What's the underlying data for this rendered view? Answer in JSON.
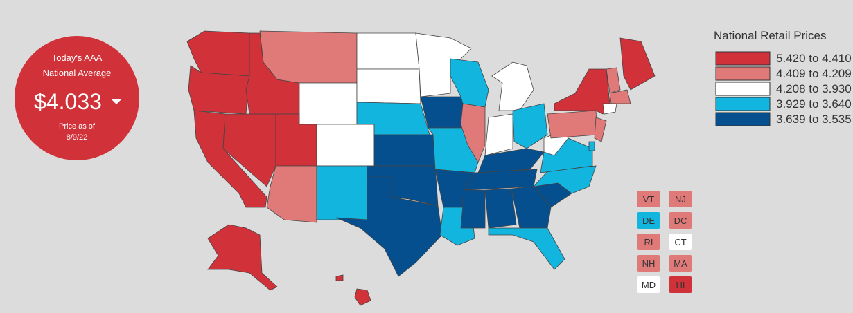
{
  "badge": {
    "line1": "Today's AAA",
    "line2": "National Average",
    "price": "$4.033",
    "date_label": "Price as of",
    "date": "8/9/22"
  },
  "legend": {
    "title": "National Retail Prices",
    "entries": [
      {
        "label": "5.420 to 4.410",
        "color": "#d13239"
      },
      {
        "label": "4.409 to 4.209",
        "color": "#e07a78"
      },
      {
        "label": "4.208 to 3.930",
        "color": "#ffffff"
      },
      {
        "label": "3.929 to 3.640",
        "color": "#12b5dd"
      },
      {
        "label": "3.639 to 3.535",
        "color": "#054f8f"
      }
    ]
  },
  "small_states": [
    {
      "label": "VT",
      "color": "#e07a78"
    },
    {
      "label": "NJ",
      "color": "#e07a78"
    },
    {
      "label": "DE",
      "color": "#12b5dd"
    },
    {
      "label": "DC",
      "color": "#e07a78"
    },
    {
      "label": "RI",
      "color": "#e07a78"
    },
    {
      "label": "CT",
      "color": "#ffffff"
    },
    {
      "label": "NH",
      "color": "#e07a78"
    },
    {
      "label": "MA",
      "color": "#e07a78"
    },
    {
      "label": "MD",
      "color": "#ffffff"
    },
    {
      "label": "HI",
      "color": "#d13239"
    }
  ]
}
